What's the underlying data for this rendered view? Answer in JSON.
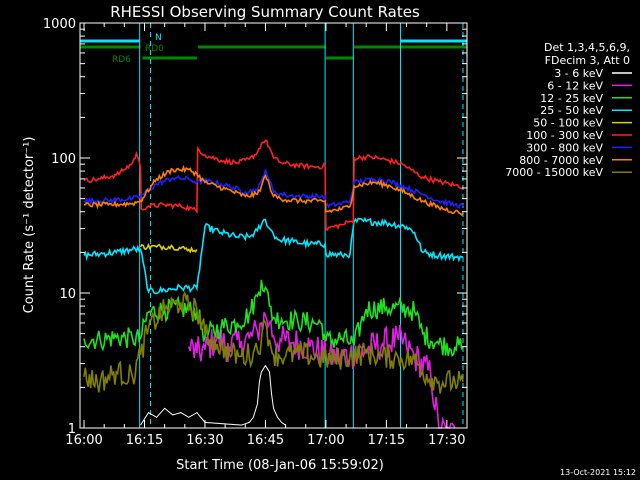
{
  "chart_data": {
    "type": "line",
    "title": "RHESSI Observing Summary Count Rates",
    "xlabel": "Start Time (08-Jan-06 15:59:02)",
    "ylabel": "Count Rate (s⁻¹ detector⁻¹)",
    "x_unit": "minutes of day",
    "xlim": [
      959,
      1055
    ],
    "x_ticks": [
      {
        "x": 960,
        "label": "16:00"
      },
      {
        "x": 975,
        "label": "16:15"
      },
      {
        "x": 990,
        "label": "16:30"
      },
      {
        "x": 1005,
        "label": "16:45"
      },
      {
        "x": 1020,
        "label": "17:00"
      },
      {
        "x": 1035,
        "label": "17:15"
      },
      {
        "x": 1050,
        "label": "17:30"
      }
    ],
    "y_scale": "log",
    "ylim": [
      1,
      1000
    ],
    "y_ticks": [
      {
        "y": 1,
        "label": "1"
      },
      {
        "y": 10,
        "label": "10"
      },
      {
        "y": 100,
        "label": "100"
      },
      {
        "y": 1000,
        "label": "1000"
      }
    ],
    "legend_header": [
      "Det 1,3,4,5,6,9,",
      "FDecim 3, Att 0"
    ],
    "legend_placement": "right",
    "grid": false,
    "series": [
      {
        "name": "3 - 6 keV",
        "color": "#ffffff",
        "x": [
          974,
          976,
          978,
          980,
          982,
          984,
          986,
          988,
          990,
          999,
          1001,
          1002,
          1003,
          1003.5,
          1004,
          1005,
          1006,
          1006.5,
          1007,
          1008,
          1009,
          1010
        ],
        "y": [
          1.05,
          1.3,
          1.2,
          1.4,
          1.25,
          1.3,
          1.2,
          1.3,
          1.1,
          1.05,
          1.1,
          1.2,
          1.5,
          2.2,
          2.6,
          2.9,
          2.6,
          1.8,
          1.4,
          1.2,
          1.1,
          1.05
        ]
      },
      {
        "name": "6 - 12 keV",
        "color": "#e020e0",
        "x": [
          986,
          988,
          990,
          993,
          996,
          999,
          1001,
          1003,
          1004,
          1005,
          1006,
          1007,
          1009,
          1012,
          1016,
          1020,
          1023,
          1026,
          1030,
          1034,
          1038,
          1040,
          1042,
          1046,
          1048,
          1050,
          1052
        ],
        "y": [
          4.0,
          3.6,
          3.8,
          4.6,
          4.0,
          4.4,
          4.6,
          5.2,
          6.0,
          6.8,
          6.0,
          4.8,
          4.4,
          4.3,
          4.0,
          3.5,
          3.3,
          3.5,
          3.8,
          4.2,
          4.5,
          4.0,
          3.4,
          2.5,
          1.0,
          0.9,
          0.9
        ]
      },
      {
        "name": "12 - 25 keV",
        "color": "#20e020",
        "x": [
          960,
          964,
          968,
          972,
          974,
          976,
          980,
          984,
          988,
          990,
          994,
          998,
          1001,
          1003,
          1004,
          1005,
          1006,
          1007,
          1009,
          1013,
          1017,
          1019,
          1020,
          1024,
          1027,
          1030,
          1035,
          1040,
          1042,
          1044,
          1048,
          1052,
          1054
        ],
        "y": [
          4.6,
          4.5,
          4.7,
          4.6,
          4.6,
          7.2,
          7.5,
          7.7,
          7.2,
          4.8,
          5.6,
          6.0,
          7.0,
          9.5,
          12.5,
          11.0,
          8.0,
          6.6,
          6.4,
          6.2,
          6.0,
          5.9,
          4.4,
          4.6,
          4.2,
          7.6,
          7.8,
          7.6,
          7.3,
          5.0,
          4.2,
          4.0,
          4.0
        ]
      },
      {
        "name": "25 - 50 keV",
        "color": "#00e8ff",
        "x": [
          960,
          964,
          968,
          972,
          974,
          976,
          980,
          984,
          988,
          990,
          994,
          998,
          1001,
          1003,
          1004,
          1005,
          1006,
          1008,
          1012,
          1016,
          1019.8,
          1020,
          1024,
          1026,
          1027,
          1030,
          1035,
          1040,
          1042,
          1044,
          1048,
          1052,
          1054
        ],
        "y": [
          19,
          19.5,
          20,
          21,
          21,
          10.2,
          10.5,
          11,
          10.8,
          31,
          28,
          26,
          26,
          29,
          32,
          35,
          30,
          25,
          24,
          23,
          23,
          19.5,
          19,
          19.5,
          34,
          34,
          33,
          31,
          28,
          20,
          19,
          18.5,
          18.5
        ]
      },
      {
        "name": "50 - 100 keV",
        "color": "#ddd000",
        "x": [
          974,
          978,
          982,
          986,
          988
        ],
        "y": [
          22,
          22,
          22,
          21,
          21
        ]
      },
      {
        "name": "100 - 300 keV",
        "color": "#ff2020",
        "x": [
          960,
          964,
          968,
          970,
          972,
          973,
          974,
          974.2,
          976,
          980,
          984,
          987,
          988,
          988.2,
          990,
          994,
          998,
          1001,
          1003,
          1004,
          1005,
          1006,
          1007,
          1009,
          1013,
          1017,
          1019.8,
          1020,
          1024,
          1026,
          1026.8,
          1027,
          1031,
          1035,
          1039,
          1041,
          1044,
          1048,
          1052,
          1054
        ],
        "y": [
          68,
          70,
          75,
          82,
          92,
          108,
          85,
          42,
          44,
          45,
          44,
          42,
          40,
          118,
          105,
          96,
          92,
          98,
          110,
          128,
          135,
          120,
          100,
          92,
          88,
          86,
          87,
          30,
          32,
          34,
          33,
          100,
          102,
          97,
          90,
          82,
          72,
          67,
          63,
          61
        ]
      },
      {
        "name": "300 - 800 keV",
        "color": "#2020ff",
        "x": [
          960,
          966,
          972,
          974,
          978,
          982,
          986,
          988,
          990,
          995,
          1000,
          1003,
          1004,
          1005,
          1006,
          1007,
          1010,
          1014,
          1018,
          1019.8,
          1020,
          1024,
          1026,
          1027,
          1032,
          1036,
          1040,
          1044,
          1048,
          1052,
          1054
        ],
        "y": [
          48,
          48.5,
          50,
          52,
          64,
          71,
          70,
          66,
          68,
          63,
          56,
          58,
          67,
          82,
          68,
          56,
          53,
          52,
          52,
          52,
          44,
          46,
          48,
          66,
          70,
          67,
          60,
          54,
          48,
          45,
          44
        ]
      },
      {
        "name": "800 - 7000 keV",
        "color": "#ff8000",
        "x": [
          960,
          966,
          972,
          974,
          978,
          982,
          986,
          988,
          990,
          995,
          1000,
          1003,
          1004,
          1005,
          1006,
          1007,
          1010,
          1014,
          1018,
          1019.8,
          1020,
          1024,
          1026,
          1027,
          1032,
          1036,
          1040,
          1044,
          1048,
          1052,
          1054
        ],
        "y": [
          45,
          45,
          46,
          48,
          70,
          82,
          82,
          76,
          66,
          59,
          52,
          54,
          62,
          74,
          63,
          52,
          49,
          48,
          48,
          48,
          40,
          42,
          44,
          62,
          66,
          62,
          55,
          48,
          43,
          40,
          39
        ]
      },
      {
        "name": "7000 - 15000 keV",
        "color": "#808000",
        "x": [
          960,
          964,
          968,
          972,
          974,
          976,
          980,
          984,
          988,
          990,
          993,
          996,
          999,
          1002,
          1004,
          1005,
          1006,
          1007,
          1010,
          1014,
          1018,
          1022,
          1026,
          1030,
          1034,
          1038,
          1042,
          1044,
          1048,
          1052,
          1054
        ],
        "y": [
          2.4,
          2.2,
          2.6,
          2.4,
          3.5,
          5.5,
          7.5,
          8.5,
          7.5,
          5.0,
          4.2,
          3.6,
          3.4,
          3.6,
          4.5,
          6.0,
          4.5,
          3.5,
          3.4,
          3.6,
          3.3,
          3.2,
          3.4,
          3.6,
          3.4,
          3.3,
          3.2,
          2.6,
          2.2,
          2.2,
          2.2
        ]
      }
    ],
    "vlines": [
      {
        "x": 959,
        "style": "solid",
        "color": "#00e8ff"
      },
      {
        "x": 973.8,
        "style": "solid",
        "color": "#00e8ff"
      },
      {
        "x": 976.5,
        "style": "dashed",
        "color": "#00e8ff"
      },
      {
        "x": 1019.8,
        "style": "solid",
        "color": "#00e8ff"
      },
      {
        "x": 1026.8,
        "style": "solid",
        "color": "#00e8ff"
      },
      {
        "x": 1038.5,
        "style": "solid",
        "color": "#00e8ff"
      },
      {
        "x": 1054,
        "style": "dashed",
        "color": "#00e8ff"
      }
    ],
    "flag_bars": [
      {
        "label": "N",
        "color": "#00e8ff",
        "level": 1,
        "intervals": [
          [
            959,
            973.8
          ],
          [
            1038.5,
            1055
          ]
        ]
      },
      {
        "label": "RD0",
        "color": "#008800",
        "level": 2,
        "intervals": [
          [
            959,
            974
          ],
          [
            988.3,
            1020
          ],
          [
            1027,
            1055
          ]
        ]
      },
      {
        "label": "RD6",
        "color": "#008800",
        "level": 3,
        "intervals": [
          [
            974.5,
            988
          ],
          [
            1020,
            1027
          ]
        ]
      }
    ],
    "footer_date": "13-Oct-2021 15:12"
  }
}
